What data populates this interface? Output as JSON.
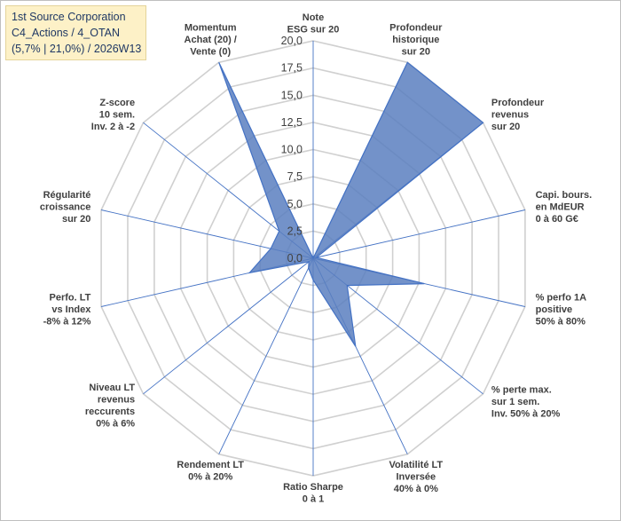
{
  "title_box": {
    "line1": "1st Source Corporation",
    "line2": "C4_Actions / 4_OTAN",
    "line3": "(5,7% | 21,0%) / 2026W13"
  },
  "chart_data": {
    "type": "radar",
    "rmin": 0,
    "rmax": 20,
    "ticks": [
      "0,0",
      "2,5",
      "5,0",
      "7,5",
      "10,0",
      "12,5",
      "15,0",
      "17,5",
      "20,0"
    ],
    "grid": true,
    "series_color": "#5a7fbf",
    "axes": [
      {
        "label": [
          "Note",
          "ESG sur 20"
        ],
        "value": 0
      },
      {
        "label": [
          "Profondeur",
          "historique",
          "sur 20"
        ],
        "value": 20
      },
      {
        "label": [
          "Profondeur",
          "revenus",
          "sur 20"
        ],
        "value": 20
      },
      {
        "label": [
          "Capi. bours.",
          "en MdEUR",
          "0 à 60 G€"
        ],
        "value": 0.3
      },
      {
        "label": [
          "% perfo 1A",
          "positive",
          "50% à 80%"
        ],
        "value": 10.5
      },
      {
        "label": [
          "% perte max.",
          "sur 1 sem.",
          "Inv. 50% à 20%"
        ],
        "value": 4
      },
      {
        "label": [
          "Volatilité LT",
          "Inversée",
          "40% à 0%"
        ],
        "value": 9
      },
      {
        "label": [
          "Ratio Sharpe",
          "0 à 1"
        ],
        "value": 2
      },
      {
        "label": [
          "Rendement LT",
          "0% à 20%"
        ],
        "value": 1
      },
      {
        "label": [
          "Niveau LT",
          "revenus",
          "reccurents",
          "0% à 6%"
        ],
        "value": 0.5
      },
      {
        "label": [
          "Perfo. LT",
          "vs Index",
          "-8% à 12%"
        ],
        "value": 6
      },
      {
        "label": [
          "Régularité",
          "croissance",
          "sur 20"
        ],
        "value": 4
      },
      {
        "label": [
          "Z-score",
          "10 sem.",
          "Inv. 2 à -2"
        ],
        "value": 4
      },
      {
        "label": [
          "Momentum",
          "Achat (20) /",
          "Vente (0)"
        ],
        "value": 20
      }
    ]
  }
}
